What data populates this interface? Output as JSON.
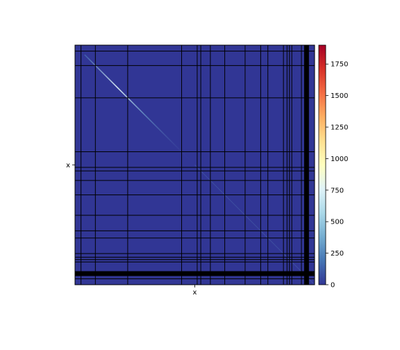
{
  "chart_data": {
    "type": "heatmap",
    "title": "",
    "xlabel": "",
    "ylabel": "",
    "x_tick_label": "x",
    "y_tick_label": "x",
    "colormap": "RdYlBu_r",
    "colorbar": {
      "range": [
        0,
        1900
      ],
      "ticks": [
        0,
        250,
        500,
        750,
        1000,
        1250,
        1500,
        1750
      ],
      "colors": [
        "#313695",
        "#4575b4",
        "#74add1",
        "#abd9e9",
        "#e0f3f8",
        "#ffffbf",
        "#fee090",
        "#fdae61",
        "#f46d43",
        "#d73027",
        "#a50026"
      ]
    },
    "matrix_dimension": 1000,
    "background_value": 0,
    "diagonal_peak_value": 750,
    "separator_lines_fraction": [
      0.025,
      0.085,
      0.22,
      0.445,
      0.51,
      0.525,
      0.565,
      0.625,
      0.71,
      0.775,
      0.805,
      0.87,
      0.885,
      0.895,
      0.905,
      0.945,
      0.975
    ],
    "thick_separator_fraction": 0.965
  }
}
